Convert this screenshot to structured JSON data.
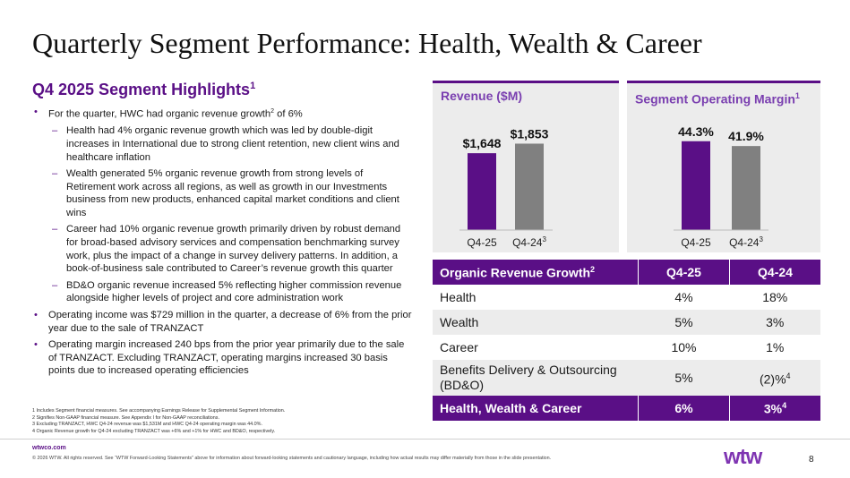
{
  "title": "Quarterly Segment Performance: Health, Wealth & Career",
  "highlights": {
    "title": "Q4 2025 Segment Highlights",
    "title_sup": "1",
    "b1": {
      "pre": "For the quarter, HWC had organic revenue growth",
      "sup": "2",
      "post": " of 6%"
    },
    "sub1": "Health had 4% organic revenue growth which was led by double-digit increases in International due to strong client retention, new client wins and healthcare inflation",
    "sub2": "Wealth generated 5% organic revenue growth from strong levels of Retirement work across all regions, as well as growth in our Investments business from new products, enhanced capital market conditions and client wins",
    "sub3": "Career had 10% organic revenue growth primarily driven by robust demand for broad-based advisory services and compensation benchmarking survey work, plus the impact of a change in survey delivery patterns. In addition, a book-of-business sale contributed to Career’s revenue growth this quarter",
    "sub4": "BD&O organic revenue increased 5% reflecting higher commission revenue alongside higher levels of project and core administration work",
    "b2": "Operating income was $729 million in the quarter, a decrease of 6% from the prior year due to the sale of TRANZACT",
    "b3": "Operating margin increased 240 bps from the prior year primarily due to the sale of TRANZACT. Excluding TRANZACT, operating margins increased 30 basis points due to increased operating efficiencies"
  },
  "footnotes": [
    "1 Includes Segment financial measures. See accompanying Earnings Release for Supplemental Segment Information.",
    "2 Signifies Non-GAAP financial measure. See Appendix I for Non-GAAP reconciliations.",
    "3 Excluding TRANZACT, HWC Q4-24 revenue was $1,531M and HWC Q4-24 operating margin was 44.0%.",
    "4 Organic Revenue growth for Q4-24 excluding TRANZACT was +6% and +1% for HWC and BD&O, respectively."
  ],
  "footer": {
    "site": "wtwco.com",
    "copyright": "© 2026 WTW. All rights reserved. See “WTW Forward-Looking Statements” above for information about forward-looking statements and cautionary language, including how actual results may differ materially from those in the slide presentation.",
    "logo": "wtw",
    "page": "8"
  },
  "chart_data": [
    {
      "type": "bar",
      "title": "Revenue ($M)",
      "categories": [
        "Q4-25",
        "Q4-24"
      ],
      "category_sups": [
        "",
        "3"
      ],
      "values": [
        1648,
        1853
      ],
      "labels": [
        "$1,648",
        "$1,853"
      ],
      "colors": [
        "#5a0f86",
        "#808080"
      ],
      "ylim": [
        0,
        2150
      ]
    },
    {
      "type": "bar",
      "title": "Segment Operating Margin",
      "title_sup": "1",
      "categories": [
        "Q4-25",
        "Q4-24"
      ],
      "category_sups": [
        "",
        "3"
      ],
      "values": [
        44.3,
        41.9
      ],
      "labels": [
        "44.3%",
        "41.9%"
      ],
      "colors": [
        "#5a0f86",
        "#808080"
      ],
      "ylim": [
        0,
        50
      ]
    }
  ],
  "table": {
    "header": {
      "label": "Organic Revenue Growth",
      "label_sup": "2",
      "col1": "Q4-25",
      "col2": "Q4-24"
    },
    "rows": [
      {
        "label": "Health",
        "v1": "4%",
        "v2": "18%"
      },
      {
        "label": "Wealth",
        "v1": "5%",
        "v2": "3%"
      },
      {
        "label": "Career",
        "v1": "10%",
        "v2": "1%"
      },
      {
        "label": "Benefits Delivery & Outsourcing (BD&O)",
        "v1": "5%",
        "v2": "(2)%",
        "v2_sup": "4"
      }
    ],
    "total": {
      "label": "Health, Wealth & Career",
      "v1": "6%",
      "v2": "3%",
      "v2_sup": "4"
    }
  }
}
